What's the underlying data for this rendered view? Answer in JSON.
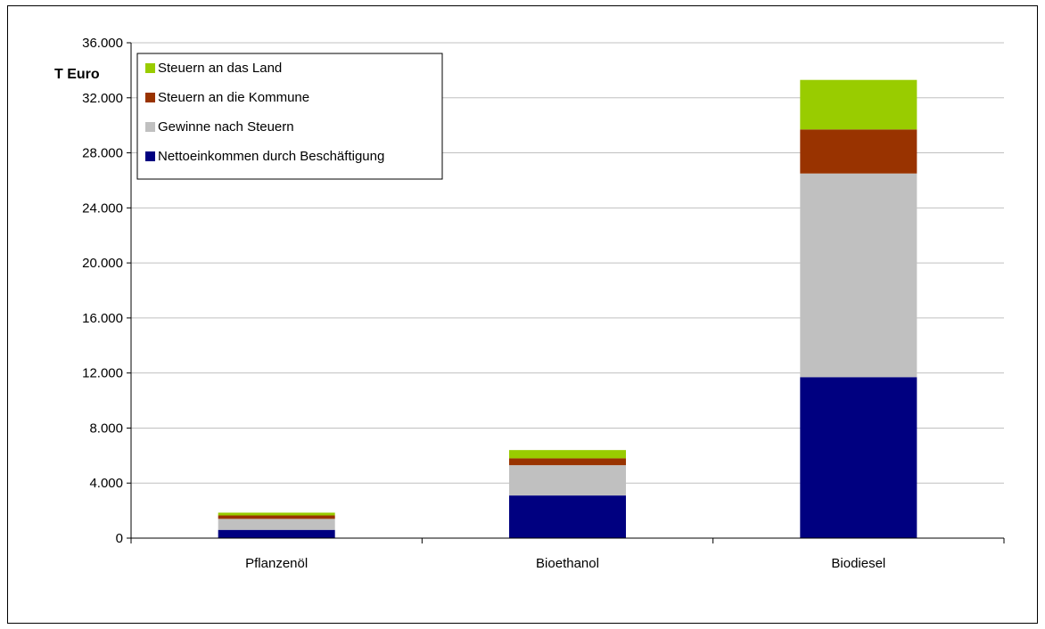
{
  "chart_data": {
    "type": "bar",
    "stacked": true,
    "ylabel": "T Euro",
    "ylim": [
      0,
      36000
    ],
    "yticks": [
      "0",
      "4.000",
      "8.000",
      "12.000",
      "16.000",
      "20.000",
      "24.000",
      "28.000",
      "32.000",
      "36.000"
    ],
    "ytick_values": [
      0,
      4000,
      8000,
      12000,
      16000,
      20000,
      24000,
      28000,
      32000,
      36000
    ],
    "grid": true,
    "legend_position": "top-left",
    "categories": [
      "Pflanzenöl",
      "Bioethanol",
      "Biodiesel"
    ],
    "series": [
      {
        "name": "Nettoeinkommen durch Beschäftigung",
        "color": "#000080",
        "values": [
          600,
          3100,
          11700
        ]
      },
      {
        "name": "Gewinne nach Steuern",
        "color": "#c0c0c0",
        "values": [
          800,
          2200,
          14800
        ]
      },
      {
        "name": "Steuern an die Kommune",
        "color": "#993300",
        "values": [
          250,
          500,
          3200
        ]
      },
      {
        "name": "Steuern an das Land",
        "color": "#99cc00",
        "values": [
          200,
          600,
          3600
        ]
      }
    ]
  }
}
